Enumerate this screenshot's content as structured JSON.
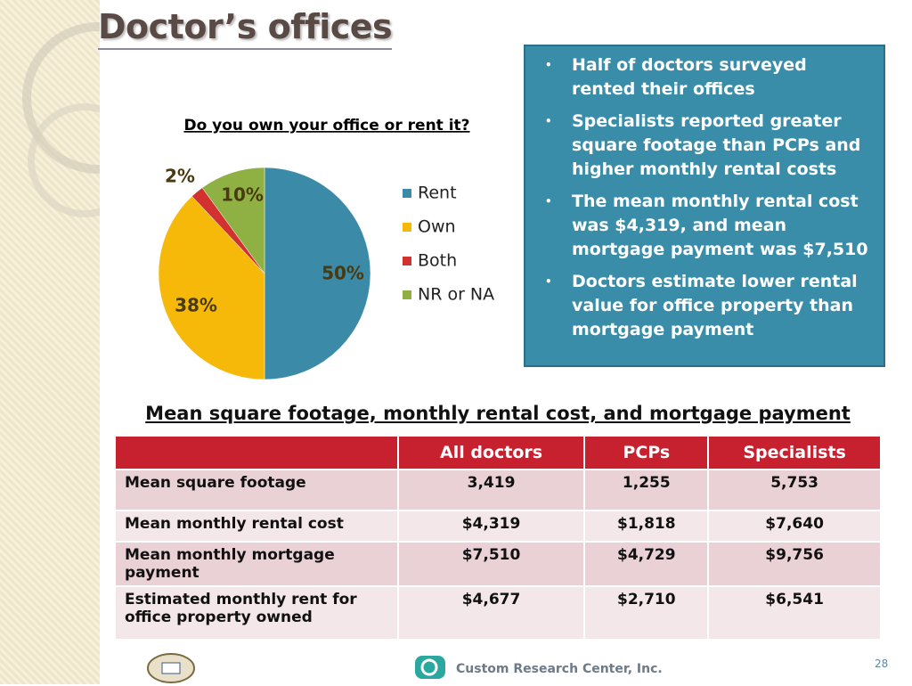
{
  "header": {
    "title": "Doctor’s offices"
  },
  "chart_data": {
    "type": "pie",
    "title": "Do you own your office or rent it?",
    "categories": [
      "Rent",
      "Own",
      "Both",
      "NR or NA"
    ],
    "values": [
      50,
      38,
      2,
      10
    ],
    "value_labels": [
      "50%",
      "38%",
      "2%",
      "10%"
    ],
    "colors": [
      "#3b8aa8",
      "#f6b90a",
      "#d2322f",
      "#8fb144"
    ],
    "legend": "right"
  },
  "bullets": [
    "Half of doctors surveyed rented their offices",
    "Specialists reported greater square footage than PCPs and higher monthly rental costs",
    "The mean monthly rental cost was $4,319, and mean mortgage payment was $7,510",
    "Doctors estimate lower rental value for office property than mortgage payment"
  ],
  "table": {
    "title": "Mean square footage, monthly rental cost, and mortgage payment",
    "columns": [
      "All doctors",
      "PCPs",
      "Specialists"
    ],
    "rows": [
      [
        "Mean square footage",
        "3,419",
        "1,255",
        "5,753"
      ],
      [
        "Mean monthly rental cost",
        "$4,319",
        "$1,818",
        "$7,640"
      ],
      [
        "Mean monthly mortgage payment",
        "$7,510",
        "$4,729",
        "$9,756"
      ],
      [
        "Estimated monthly rent for office property owned",
        "$4,677",
        "$2,710",
        "$6,541"
      ]
    ]
  },
  "footer": {
    "company": "Custom Research Center, Inc.",
    "page": "28"
  }
}
